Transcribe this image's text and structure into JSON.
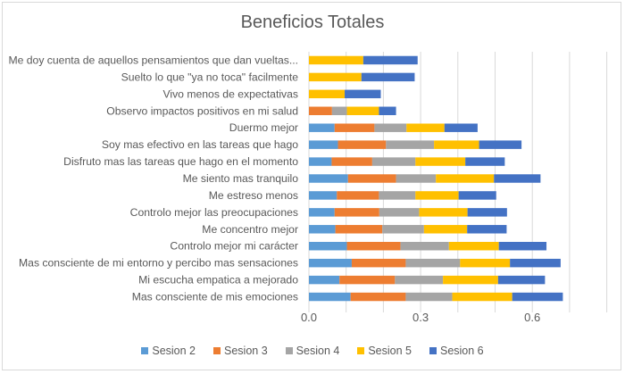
{
  "chart_data": {
    "type": "bar",
    "orientation": "horizontal",
    "stacked": true,
    "title": "Beneficios Totales",
    "xlabel": "",
    "ylabel": "",
    "xlim": [
      0,
      0.8
    ],
    "x_ticks": [
      0.0,
      0.3,
      0.6
    ],
    "x_tick_labels": [
      "0.0",
      "0.3",
      "0.6"
    ],
    "gridlines_every": 0.1,
    "grid": true,
    "legend_position": "bottom",
    "categories": [
      "Me doy cuenta de aquellos pensamientos que dan vueltas...",
      "Suelto lo que \"ya no toca\" facilmente",
      "Vivo menos de expectativas",
      "Observo impactos positivos en mi salud",
      "Duermo mejor",
      "Soy mas efectivo en las tareas que hago",
      "Disfruto mas las tareas que hago en el momento",
      "Me siento mas tranquilo",
      "Me estreso menos",
      "Controlo mejor las preocupaciones",
      "Me concentro mejor",
      "Controlo mejor mi carácter",
      "Mas consciente de mi entorno y percibo mas sensaciones",
      "Mi escucha empatica a mejorado",
      "Mas consciente de mis emociones"
    ],
    "series": [
      {
        "name": "Sesion 2",
        "color": "#5b9bd5",
        "values": [
          0,
          0,
          0,
          0,
          0.069,
          0.078,
          0.061,
          0.105,
          0.075,
          0.069,
          0.071,
          0.102,
          0.115,
          0.082,
          0.112
        ]
      },
      {
        "name": "Sesion 3",
        "color": "#ed7d31",
        "values": [
          0,
          0,
          0,
          0.062,
          0.107,
          0.129,
          0.109,
          0.129,
          0.113,
          0.12,
          0.126,
          0.144,
          0.145,
          0.149,
          0.148
        ]
      },
      {
        "name": "Sesion 4",
        "color": "#a5a5a5",
        "values": [
          0,
          0,
          0,
          0.04,
          0.086,
          0.129,
          0.116,
          0.107,
          0.098,
          0.107,
          0.112,
          0.13,
          0.146,
          0.129,
          0.125
        ]
      },
      {
        "name": "Sesion 5",
        "color": "#ffc000",
        "values": [
          0.146,
          0.141,
          0.096,
          0.086,
          0.102,
          0.121,
          0.134,
          0.156,
          0.116,
          0.13,
          0.116,
          0.134,
          0.134,
          0.148,
          0.161
        ]
      },
      {
        "name": "Sesion 6",
        "color": "#4472c4",
        "values": [
          0.146,
          0.143,
          0.097,
          0.046,
          0.089,
          0.114,
          0.106,
          0.125,
          0.101,
          0.106,
          0.106,
          0.128,
          0.136,
          0.126,
          0.136
        ]
      }
    ]
  },
  "colors": {
    "grid": "#d9d9d9",
    "text": "#595959",
    "border": "#d9d9d9"
  }
}
